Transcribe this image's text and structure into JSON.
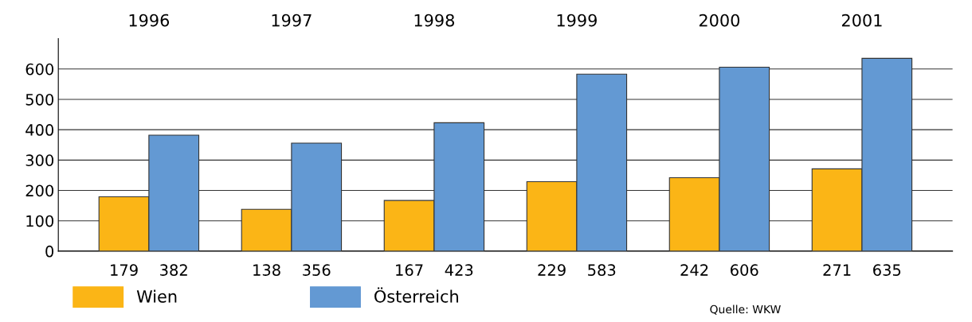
{
  "chart_data": {
    "type": "bar",
    "categories": [
      "1996",
      "1997",
      "1998",
      "1999",
      "2000",
      "2001"
    ],
    "series": [
      {
        "name": "Wien",
        "color": "#fbb516",
        "values": [
          179,
          138,
          167,
          229,
          242,
          271
        ]
      },
      {
        "name": "Österreich",
        "color": "#6399d3",
        "values": [
          382,
          356,
          423,
          583,
          606,
          635
        ]
      }
    ],
    "ylim": [
      0,
      700
    ],
    "yticks": [
      0,
      100,
      200,
      300,
      400,
      500,
      600
    ],
    "grid": "y",
    "legend": "bottom left",
    "data_labels": true,
    "annotations": [
      "Quelle: WKW"
    ]
  }
}
